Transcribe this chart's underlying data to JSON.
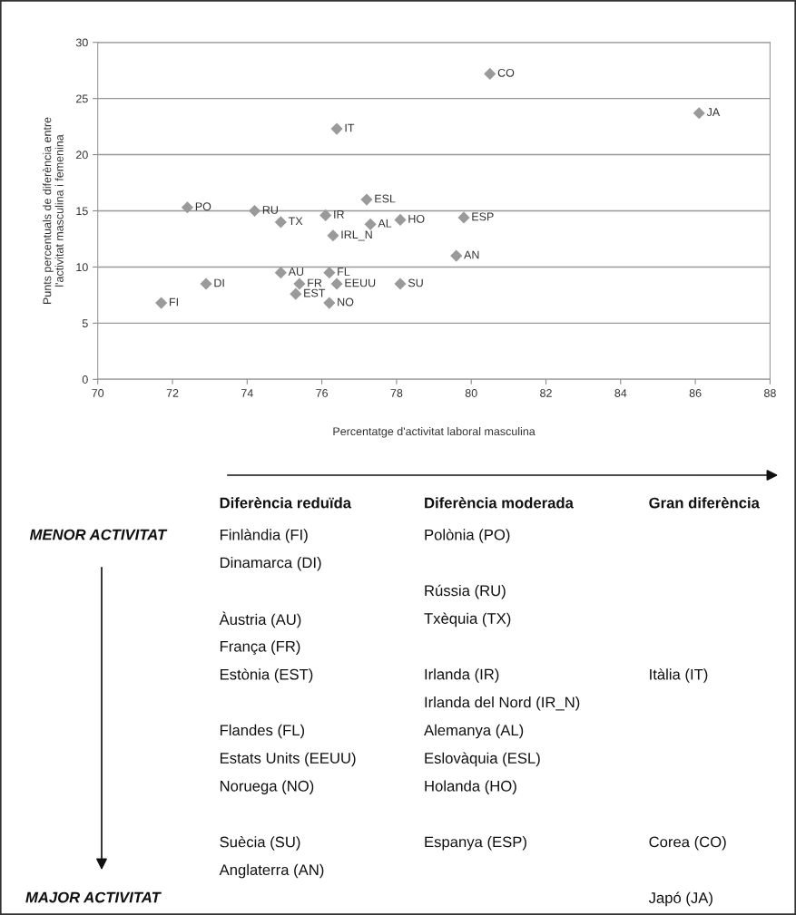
{
  "chart_data": {
    "type": "scatter",
    "xlabel": "Percentatge d'activitat laboral masculina",
    "ylabel": "Punts percentuals de diferència entre\nl'activitat masculina i femenina",
    "x": [
      72.4,
      74.2,
      74.9,
      76.4,
      77.2,
      76.1,
      77.3,
      78.1,
      76.3,
      74.9,
      76.2,
      75.4,
      76.4,
      78.1,
      72.9,
      75.3,
      76.2,
      71.7,
      80.5,
      86.1,
      79.8,
      79.6
    ],
    "series": [
      {
        "color": "#9a9a9a",
        "values": [
          15.3,
          15.0,
          14.0,
          22.3,
          16.0,
          14.6,
          13.8,
          14.2,
          12.8,
          9.5,
          9.5,
          8.5,
          8.5,
          8.5,
          8.5,
          7.6,
          6.8,
          6.8,
          27.2,
          23.7,
          14.4,
          11.0
        ]
      }
    ],
    "marker": "diamond",
    "xlim": [
      70,
      88
    ],
    "xticks": [
      70,
      72,
      74,
      76,
      78,
      80,
      82,
      84,
      86,
      88
    ],
    "ylim": [
      0,
      30
    ],
    "yticks": [
      0,
      5,
      10,
      15,
      20,
      25,
      30
    ],
    "grid": "y",
    "annotations": [
      {
        "text": "PO",
        "x": 72.4,
        "y": 15.3
      },
      {
        "text": "RU",
        "x": 74.2,
        "y": 15.0
      },
      {
        "text": "TX",
        "x": 74.9,
        "y": 14.0
      },
      {
        "text": "IT",
        "x": 76.4,
        "y": 22.3
      },
      {
        "text": "ESL",
        "x": 77.2,
        "y": 16.0
      },
      {
        "text": "IR",
        "x": 76.1,
        "y": 14.6
      },
      {
        "text": "AL",
        "x": 77.3,
        "y": 13.8
      },
      {
        "text": "HO",
        "x": 78.1,
        "y": 14.2
      },
      {
        "text": "IRL_N",
        "x": 76.3,
        "y": 12.8
      },
      {
        "text": "AU",
        "x": 74.9,
        "y": 9.5
      },
      {
        "text": "FL",
        "x": 76.2,
        "y": 9.5
      },
      {
        "text": "FR",
        "x": 75.4,
        "y": 8.5
      },
      {
        "text": "EEUU",
        "x": 76.4,
        "y": 8.5
      },
      {
        "text": "SU",
        "x": 78.1,
        "y": 8.5
      },
      {
        "text": "DI",
        "x": 72.9,
        "y": 8.5
      },
      {
        "text": "EST",
        "x": 75.3,
        "y": 7.6
      },
      {
        "text": "NO",
        "x": 76.2,
        "y": 6.8
      },
      {
        "text": "FI",
        "x": 71.7,
        "y": 6.8
      },
      {
        "text": "CO",
        "x": 80.5,
        "y": 27.2
      },
      {
        "text": "JA",
        "x": 86.1,
        "y": 23.7
      },
      {
        "text": "ESP",
        "x": 79.8,
        "y": 14.4
      },
      {
        "text": "AN",
        "x": 79.6,
        "y": 11.0
      },
      "Diferència reduïda",
      "Diferència moderada",
      "Gran diferència",
      "MENOR ACTIVITAT",
      "MAJOR ACTIVITAT",
      "Finlàndia (FI)",
      "Dinamarca (DI)",
      "Àustria (AU)",
      "França (FR)",
      "Estònia (EST)",
      "Flandes (FL)",
      "Estats Units (EEUU)",
      "Noruega (NO)",
      "Suècia (SU)",
      "Anglaterra (AN)",
      "Polònia (PO)",
      "Rússia (RU)",
      "Txèquia (TX)",
      "Irlanda (IR)",
      "Irlanda del Nord (IR_N)",
      "Alemanya (AL)",
      "Eslovàquia (ESL)",
      "Holanda (HO)",
      "Espanya (ESP)",
      "Itàlia (IT)",
      "Corea (CO)",
      "Japó (JA)"
    ]
  }
}
